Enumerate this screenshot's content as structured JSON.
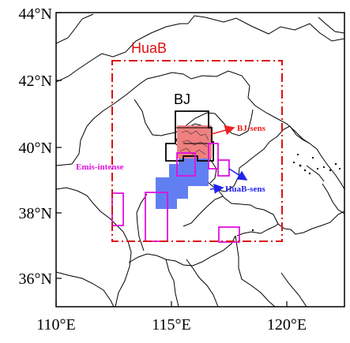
{
  "axes": {
    "lat_labels": [
      "44°N",
      "42°N",
      "40°N",
      "38°N",
      "36°N"
    ],
    "lon_labels": [
      "110°E",
      "115°E",
      "120°E"
    ]
  },
  "regions": {
    "huab_label": "HuaB",
    "bj_label": "BJ"
  },
  "annotations": {
    "bj_sens": "BJ-sens",
    "huab_sens": "HuaB-sens",
    "emis_intense": "Emis-intense"
  },
  "colors": {
    "huab_box": "#dd1111",
    "bj_sens": "#ee2222",
    "huab_sens": "#2222ee",
    "emis_intense": "#e010e0",
    "bj_fill": "#f08080",
    "huab_fill": "#5a78f0"
  }
}
